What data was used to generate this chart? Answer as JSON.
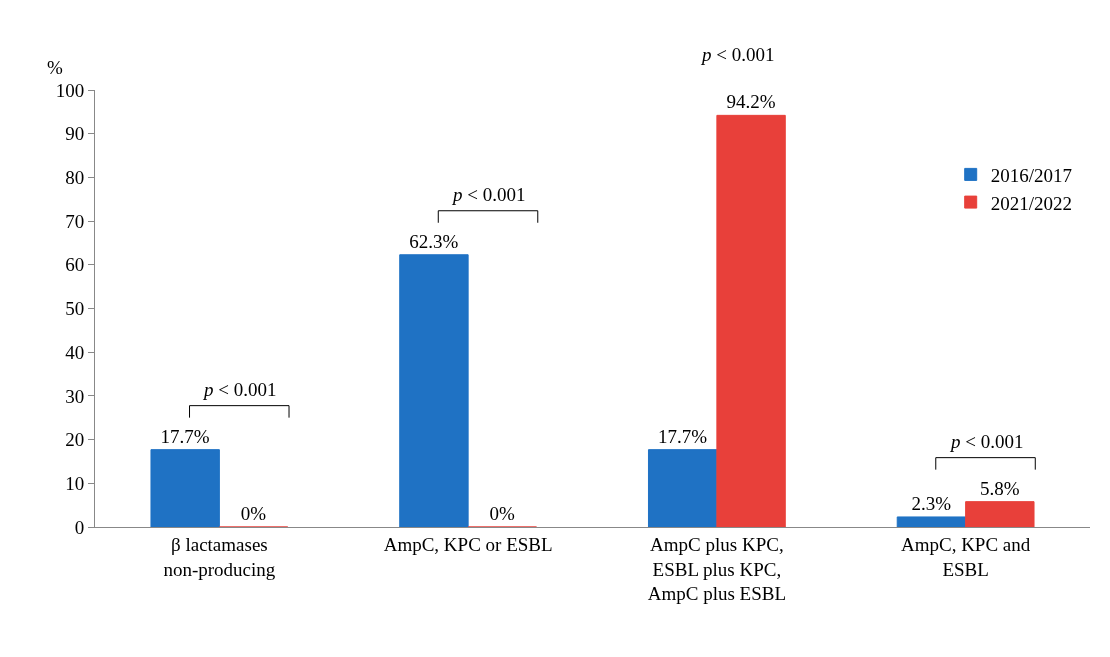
{
  "chart_data": {
    "type": "bar",
    "ylabel": "%",
    "categories": [
      "β lactamases non-producing",
      "AmpC, KPC or ESBL",
      "AmpC plus KPC, ESBL plus KPC, AmpC plus ESBL",
      "AmpC, KPC and ESBL"
    ],
    "series": [
      {
        "name": "2016/2017",
        "color": "#1f72c4",
        "values": [
          17.7,
          62.3,
          17.7,
          2.3
        ],
        "value_labels": [
          "17.7%",
          "62.3%",
          "17.7%",
          "2.3%"
        ]
      },
      {
        "name": "2021/2022",
        "color": "#e8403a",
        "values": [
          0,
          0,
          94.2,
          5.8
        ],
        "value_labels": [
          "0%",
          "0%",
          "94.2%",
          "5.8%"
        ]
      }
    ],
    "ylim": [
      0,
      100
    ],
    "yticks": [
      0,
      10,
      20,
      30,
      40,
      50,
      60,
      70,
      80,
      90,
      100
    ],
    "grid": false,
    "legend": "top right",
    "annotations": [
      "p < 0.001",
      "p < 0.001",
      "p < 0.001",
      "p < 0.001"
    ]
  }
}
